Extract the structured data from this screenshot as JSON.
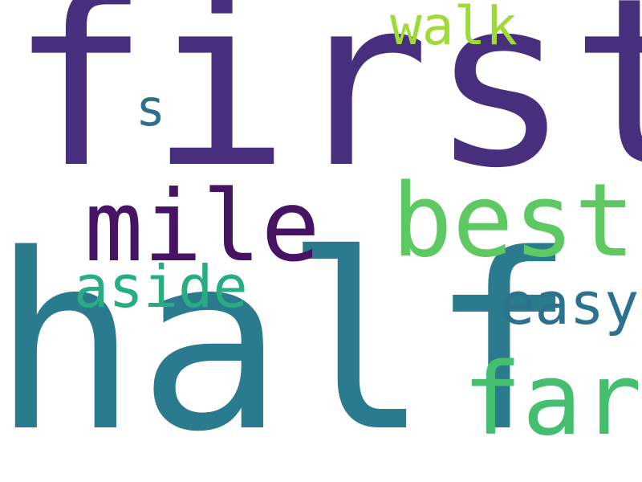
{
  "words": [
    {
      "key": "first",
      "text": "first",
      "color": "#472f7d"
    },
    {
      "key": "half",
      "text": "half",
      "color": "#2a7b8e"
    },
    {
      "key": "mile",
      "text": "mile",
      "color": "#471365"
    },
    {
      "key": "best",
      "text": "best",
      "color": "#5ec962"
    },
    {
      "key": "far",
      "text": "far",
      "color": "#44bf70"
    },
    {
      "key": "aside",
      "text": "aside",
      "color": "#27ad81"
    },
    {
      "key": "easy",
      "text": "easy",
      "color": "#2c728e"
    },
    {
      "key": "walk",
      "text": "walk",
      "color": "#a0da39"
    },
    {
      "key": "s",
      "text": "s",
      "color": "#2f6f8e"
    }
  ]
}
